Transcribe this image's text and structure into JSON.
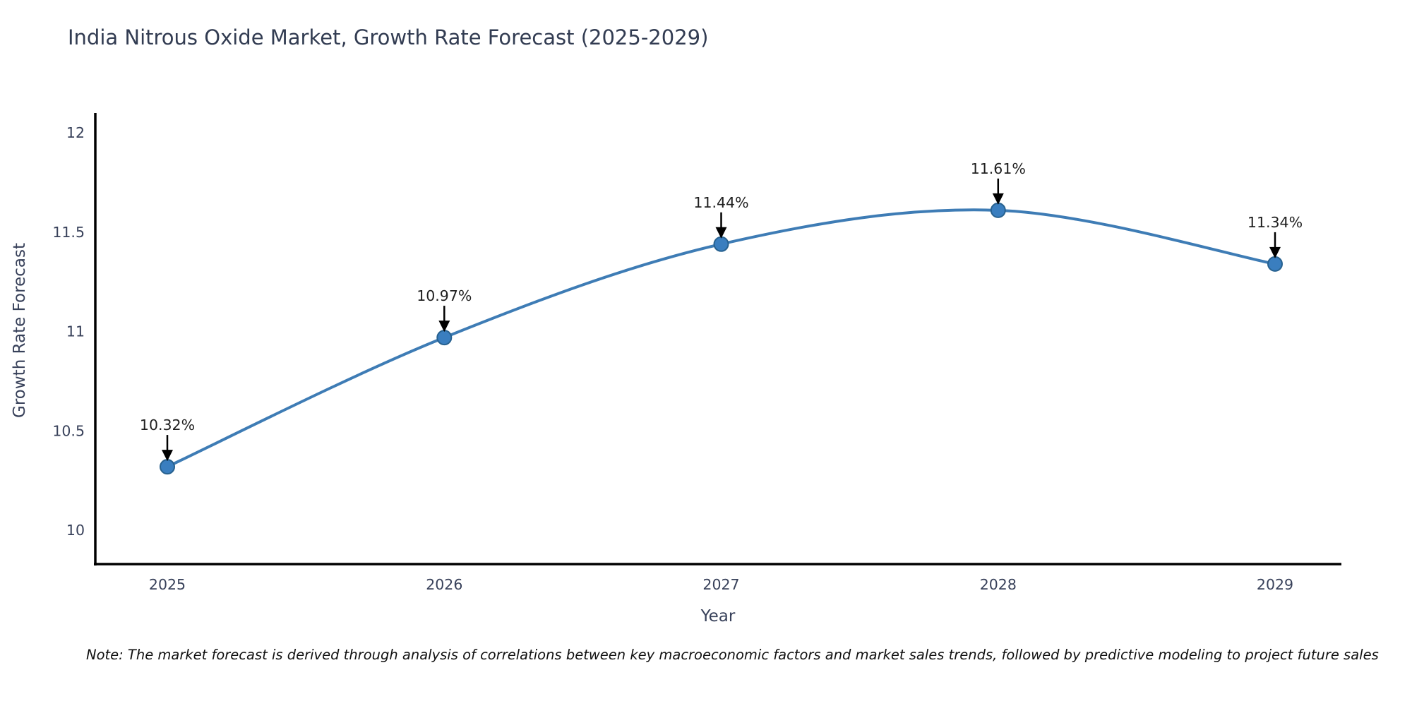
{
  "page": {
    "note": "Note: The market forecast is derived through analysis of correlations between key macroeconomic factors and market sales trends, followed by predictive modeling to project future sales"
  },
  "chart_data": {
    "type": "line",
    "title": "India Nitrous Oxide Market, Growth Rate Forecast (2025-2029)",
    "xlabel": "Year",
    "ylabel": "Growth Rate Forecast",
    "categories": [
      2025,
      2026,
      2027,
      2028,
      2029
    ],
    "values": [
      10.32,
      10.97,
      11.44,
      11.61,
      11.34
    ],
    "point_labels": [
      "10.32%",
      "10.97%",
      "11.44%",
      "11.61%",
      "11.34%"
    ],
    "yticks": [
      10,
      10.5,
      11,
      11.5,
      12
    ],
    "ylim": [
      9.83,
      12.1
    ],
    "grid": false,
    "legend": "none",
    "smooth": true,
    "colors": {
      "line": "#3e7cb5",
      "marker_fill": "#3a7ebf",
      "marker_edge": "#27618f",
      "axis": "#000000",
      "tick_label": "#38415a",
      "title": "#323c52",
      "annotation": "#1f1f1f",
      "arrow": "#000000"
    }
  }
}
